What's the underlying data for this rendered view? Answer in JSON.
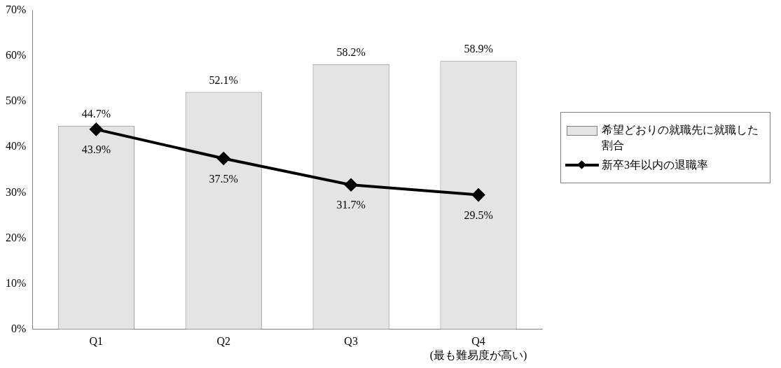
{
  "chart_data": {
    "type": "bar",
    "categories": [
      "Q1",
      "Q2",
      "Q3",
      "Q4\n(最も難易度が高い)"
    ],
    "series": [
      {
        "name": "希望どおりの就職先に就職した割合",
        "color": "#e4e4e4",
        "values": [
          44.7,
          52.1,
          58.2,
          58.9
        ],
        "value_labels": [
          "44.7%",
          "52.1%",
          "58.2%",
          "58.9%"
        ]
      },
      {
        "name": "新卒3年以内の退職率",
        "type": "line",
        "color": "#000000",
        "values": [
          43.9,
          37.5,
          31.7,
          29.5
        ],
        "value_labels": [
          "43.9%",
          "37.5%",
          "31.7%",
          "29.5%"
        ]
      }
    ],
    "ylim": [
      0,
      70
    ],
    "yticks": [
      {
        "value": 0,
        "label": "0%"
      },
      {
        "value": 10,
        "label": "10%"
      },
      {
        "value": 20,
        "label": "20%"
      },
      {
        "value": 30,
        "label": "30%"
      },
      {
        "value": 40,
        "label": "40%"
      },
      {
        "value": 50,
        "label": "50%"
      },
      {
        "value": 60,
        "label": "60%"
      },
      {
        "value": 70,
        "label": "70%"
      }
    ],
    "grid": false,
    "legend": "right",
    "marker": "diamond",
    "line_style": "solid"
  }
}
